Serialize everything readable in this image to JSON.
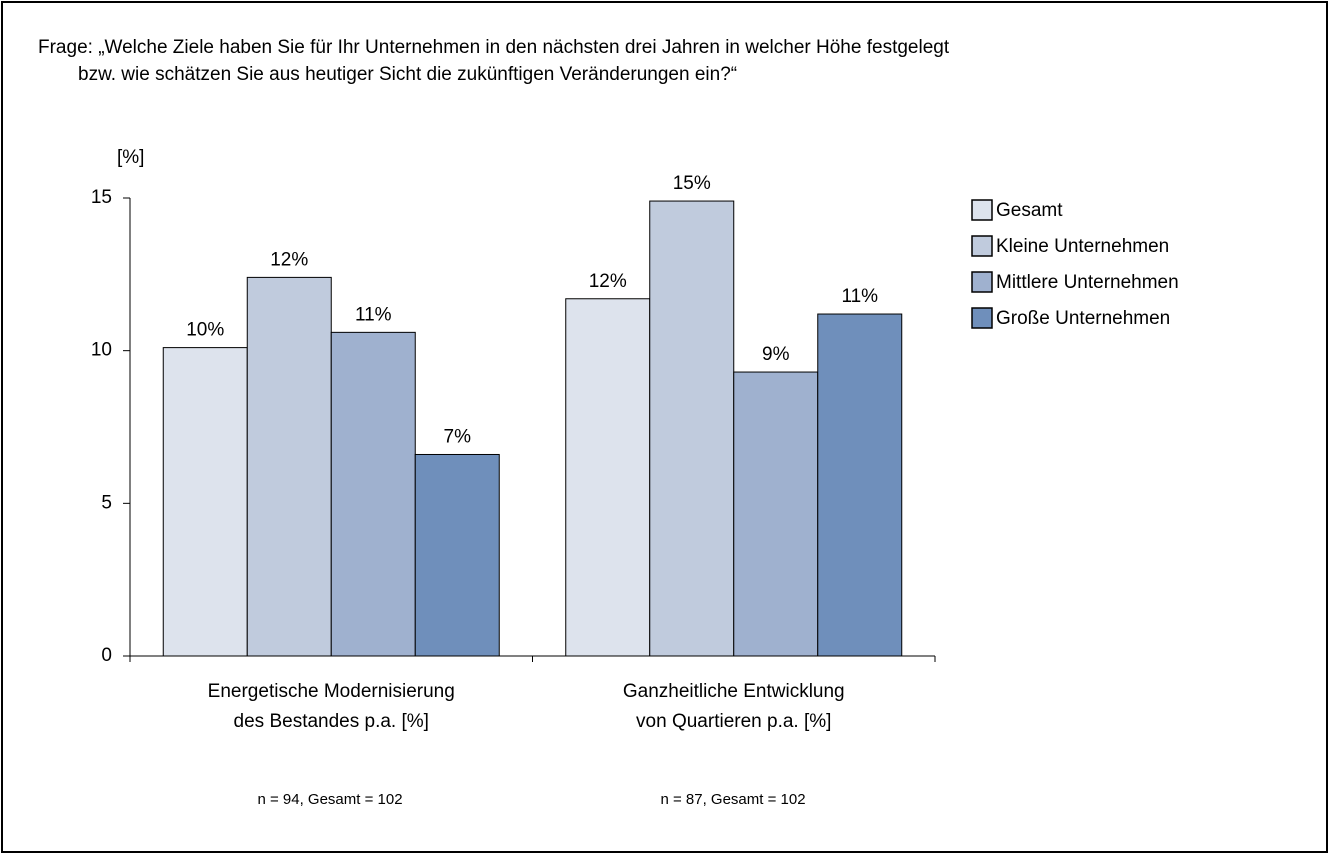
{
  "chart_data": {
    "type": "bar",
    "question": [
      "Frage: „Welche Ziele haben Sie für Ihr Unternehmen in den nächsten drei Jahren in welcher Höhe festgelegt",
      "bzw. wie schätzen Sie aus heutiger Sicht die zukünftigen Veränderungen ein?“"
    ],
    "y_label": "[%]",
    "categories": [
      "Energetische Modernisierung\ndes Bestandes p.a. [%]",
      "Ganzheitliche Entwicklung\nvon Quartieren p.a. [%]"
    ],
    "notes": [
      "n = 94, Gesamt = 102",
      "n = 87, Gesamt = 102"
    ],
    "series": [
      {
        "name": "Gesamt",
        "color": "#dde3ed",
        "values": [
          10.1,
          11.7
        ],
        "value_labels": [
          "10%",
          "12%"
        ]
      },
      {
        "name": "Kleine Unternehmen",
        "color": "#c0cbdd",
        "values": [
          12.4,
          14.9
        ],
        "value_labels": [
          "12%",
          "15%"
        ]
      },
      {
        "name": "Mittlere Unternehmen",
        "color": "#9fb1cf",
        "values": [
          10.6,
          9.3
        ],
        "value_labels": [
          "11%",
          "9%"
        ]
      },
      {
        "name": "Große Unternehmen",
        "color": "#6f8fbb",
        "values": [
          6.6,
          11.2
        ],
        "value_labels": [
          "7%",
          "11%"
        ]
      }
    ],
    "ylim": [
      0,
      15
    ],
    "yticks": [
      0,
      5,
      10,
      15
    ],
    "legend": "right"
  }
}
